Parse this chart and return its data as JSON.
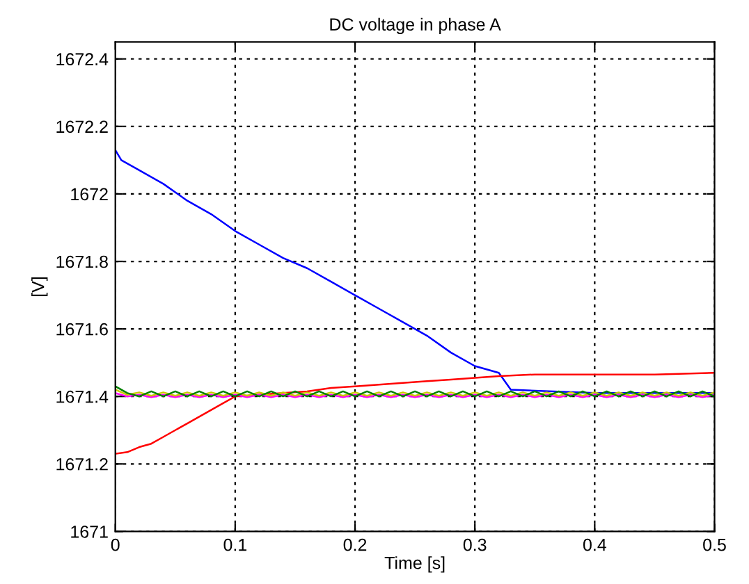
{
  "chart_data": {
    "type": "line",
    "title": "DC voltage in phase A",
    "xlabel": "Time [s]",
    "ylabel": "[V]",
    "xlim": [
      0,
      0.5
    ],
    "ylim": [
      1671,
      1672.45
    ],
    "xticks": [
      0,
      0.1,
      0.2,
      0.3,
      0.4,
      0.5
    ],
    "yticks": [
      1671,
      1671.2,
      1671.4,
      1671.6,
      1671.8,
      1672,
      1672.2,
      1672.4
    ],
    "grid": true,
    "line_style": "solid",
    "marker": "none",
    "x": [
      0,
      0.01,
      0.02,
      0.03,
      0.04,
      0.05,
      0.06,
      0.07,
      0.08,
      0.09,
      0.1,
      0.11,
      0.12,
      0.13,
      0.14,
      0.15,
      0.16,
      0.17,
      0.18,
      0.19,
      0.2,
      0.21,
      0.22,
      0.23,
      0.24,
      0.25,
      0.26,
      0.27,
      0.28,
      0.29,
      0.3,
      0.31,
      0.32,
      0.33,
      0.34,
      0.35,
      0.36,
      0.37,
      0.38,
      0.39,
      0.4,
      0.41,
      0.42,
      0.43,
      0.44,
      0.45,
      0.46,
      0.47,
      0.48,
      0.49,
      0.5
    ],
    "series": [
      {
        "color": "#0000ff",
        "x": [
          0,
          0.005,
          0.02,
          0.04,
          0.06,
          0.08,
          0.1,
          0.12,
          0.14,
          0.16,
          0.18,
          0.2,
          0.22,
          0.24,
          0.26,
          0.28,
          0.3,
          0.32,
          0.33,
          0.4,
          0.5
        ],
        "values": [
          1672.13,
          1672.1,
          1672.07,
          1672.03,
          1671.98,
          1671.94,
          1671.89,
          1671.85,
          1671.81,
          1671.78,
          1671.74,
          1671.7,
          1671.66,
          1671.62,
          1671.58,
          1671.53,
          1671.49,
          1671.47,
          1671.42,
          1671.41,
          1671.41
        ]
      },
      {
        "color": "#ff0000",
        "x": [
          0,
          0.01,
          0.02,
          0.03,
          0.04,
          0.05,
          0.06,
          0.07,
          0.08,
          0.09,
          0.1,
          0.12,
          0.14,
          0.16,
          0.18,
          0.2,
          0.22,
          0.24,
          0.26,
          0.28,
          0.3,
          0.32,
          0.35,
          0.4,
          0.45,
          0.5
        ],
        "values": [
          1671.23,
          1671.235,
          1671.25,
          1671.26,
          1671.28,
          1671.3,
          1671.32,
          1671.34,
          1671.36,
          1671.38,
          1671.4,
          1671.405,
          1671.41,
          1671.415,
          1671.425,
          1671.43,
          1671.435,
          1671.44,
          1671.445,
          1671.45,
          1671.455,
          1671.46,
          1671.465,
          1671.465,
          1671.465,
          1671.47
        ]
      },
      {
        "color": "#ff00ff",
        "values": [
          1671.41,
          1671.4,
          1671.405,
          1671.398,
          1671.405,
          1671.398,
          1671.405,
          1671.398,
          1671.405,
          1671.398,
          1671.405,
          1671.398,
          1671.405,
          1671.398,
          1671.405,
          1671.398,
          1671.405,
          1671.398,
          1671.405,
          1671.398,
          1671.405,
          1671.398,
          1671.405,
          1671.398,
          1671.405,
          1671.398,
          1671.405,
          1671.398,
          1671.405,
          1671.398,
          1671.405,
          1671.398,
          1671.405,
          1671.398,
          1671.405,
          1671.398,
          1671.405,
          1671.398,
          1671.405,
          1671.398,
          1671.405,
          1671.398,
          1671.405,
          1671.398,
          1671.405,
          1671.398,
          1671.405,
          1671.398,
          1671.405,
          1671.398,
          1671.405
        ]
      },
      {
        "color": "#c8c800",
        "values": [
          1671.42,
          1671.405,
          1671.412,
          1671.402,
          1671.412,
          1671.402,
          1671.412,
          1671.402,
          1671.412,
          1671.402,
          1671.412,
          1671.402,
          1671.412,
          1671.402,
          1671.412,
          1671.402,
          1671.412,
          1671.402,
          1671.412,
          1671.402,
          1671.412,
          1671.402,
          1671.412,
          1671.402,
          1671.412,
          1671.402,
          1671.412,
          1671.402,
          1671.412,
          1671.402,
          1671.412,
          1671.402,
          1671.412,
          1671.402,
          1671.412,
          1671.402,
          1671.412,
          1671.402,
          1671.412,
          1671.402,
          1671.412,
          1671.402,
          1671.412,
          1671.402,
          1671.412,
          1671.402,
          1671.412,
          1671.402,
          1671.412,
          1671.402,
          1671.412
        ]
      },
      {
        "color": "#008000",
        "values": [
          1671.43,
          1671.41,
          1671.4,
          1671.415,
          1671.4,
          1671.415,
          1671.4,
          1671.415,
          1671.4,
          1671.415,
          1671.4,
          1671.415,
          1671.4,
          1671.415,
          1671.4,
          1671.415,
          1671.4,
          1671.415,
          1671.4,
          1671.415,
          1671.4,
          1671.415,
          1671.4,
          1671.415,
          1671.4,
          1671.415,
          1671.4,
          1671.415,
          1671.4,
          1671.415,
          1671.4,
          1671.415,
          1671.4,
          1671.415,
          1671.4,
          1671.415,
          1671.4,
          1671.415,
          1671.4,
          1671.415,
          1671.4,
          1671.415,
          1671.4,
          1671.415,
          1671.4,
          1671.415,
          1671.4,
          1671.415,
          1671.4,
          1671.415,
          1671.4
        ]
      }
    ]
  }
}
